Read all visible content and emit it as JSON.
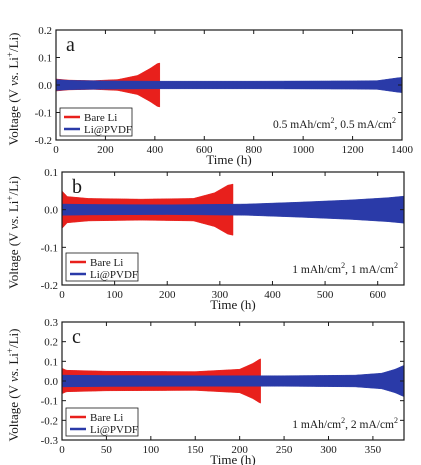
{
  "colors": {
    "bare_li": "#e8201c",
    "li_pvdf": "#2a3aa8",
    "frame": "#1a1a1a"
  },
  "chart_data": [
    {
      "type": "line",
      "panel_letter": "a",
      "xlabel": "Time (h)",
      "ylabel_parts": [
        "Voltage (V ",
        "vs.",
        " Li",
        "+",
        "/Li)"
      ],
      "condition_parts": [
        "0.5 mAh/cm",
        "2",
        ", 0.5 mA/cm",
        "2"
      ],
      "xlim": [
        0,
        1400
      ],
      "ylim": [
        -0.2,
        0.2
      ],
      "xticks": [
        0,
        200,
        400,
        600,
        800,
        1000,
        1200,
        1400
      ],
      "yticks": [
        -0.2,
        -0.1,
        0.0,
        0.1,
        0.2
      ],
      "xtick_labels": [
        "0",
        "200",
        "400",
        "600",
        "800",
        "1000",
        "1200",
        "1400"
      ],
      "ytick_labels": [
        "-0.2",
        "-0.1",
        "0.0",
        "0.1",
        "0.2"
      ],
      "legend_position": "bottom-left",
      "series": [
        {
          "name": "Bare Li",
          "color_key": "bare_li",
          "envelope": {
            "x": [
              0,
              50,
              150,
              250,
              330,
              380,
              410,
              420
            ],
            "upper": [
              0.022,
              0.018,
              0.016,
              0.02,
              0.035,
              0.06,
              0.078,
              0.08
            ]
          }
        },
        {
          "name": "Li@PVDF",
          "color_key": "li_pvdf",
          "envelope": {
            "x": [
              0,
              50,
              200,
              400,
              800,
              1200,
              1300,
              1380,
              1400
            ],
            "upper": [
              0.02,
              0.017,
              0.015,
              0.014,
              0.014,
              0.015,
              0.016,
              0.026,
              0.028
            ]
          }
        }
      ]
    },
    {
      "type": "line",
      "panel_letter": "b",
      "xlabel": "Time (h)",
      "ylabel_parts": [
        "Voltage (V ",
        "vs.",
        " Li",
        "+",
        "/Li)"
      ],
      "condition_parts": [
        "1 mAh/cm",
        "2",
        ", 1 mA/cm",
        "2"
      ],
      "xlim": [
        0,
        650
      ],
      "ylim": [
        -0.2,
        0.1
      ],
      "xticks": [
        0,
        100,
        200,
        300,
        400,
        500,
        600
      ],
      "yticks": [
        -0.2,
        -0.1,
        0.0,
        0.1
      ],
      "xtick_labels": [
        "0",
        "100",
        "200",
        "300",
        "400",
        "500",
        "600"
      ],
      "ytick_labels": [
        "-0.2",
        "-0.1",
        "0.0",
        "0.1"
      ],
      "legend_position": "bottom-left",
      "series": [
        {
          "name": "Bare Li",
          "color_key": "bare_li",
          "envelope": {
            "x": [
              0,
              10,
              50,
              150,
              250,
              290,
              315,
              325
            ],
            "upper": [
              0.05,
              0.035,
              0.03,
              0.028,
              0.03,
              0.045,
              0.065,
              0.068
            ]
          }
        },
        {
          "name": "Li@PVDF",
          "color_key": "li_pvdf",
          "envelope": {
            "x": [
              0,
              50,
              200,
              350,
              450,
              550,
              620,
              650
            ],
            "upper": [
              0.015,
              0.014,
              0.013,
              0.015,
              0.02,
              0.026,
              0.032,
              0.036
            ]
          }
        }
      ]
    },
    {
      "type": "line",
      "panel_letter": "c",
      "xlabel": "Time (h)",
      "ylabel_parts": [
        "Voltage (V ",
        "vs.",
        " Li",
        "+",
        "/Li)"
      ],
      "condition_parts": [
        "1 mAh/cm",
        "2",
        ", 2 mA/cm",
        "2"
      ],
      "xlim": [
        0,
        385
      ],
      "ylim": [
        -0.3,
        0.3
      ],
      "xticks": [
        0,
        50,
        100,
        150,
        200,
        250,
        300,
        350
      ],
      "yticks": [
        -0.3,
        -0.2,
        -0.1,
        0.0,
        0.1,
        0.2,
        0.3
      ],
      "xtick_labels": [
        "0",
        "50",
        "100",
        "150",
        "200",
        "250",
        "300",
        "350"
      ],
      "ytick_labels": [
        "-0.3",
        "-0.2",
        "-0.1",
        "0.0",
        "0.1",
        "0.2",
        "0.3"
      ],
      "legend_position": "bottom-left",
      "series": [
        {
          "name": "Bare Li",
          "color_key": "bare_li",
          "envelope": {
            "x": [
              0,
              5,
              50,
              150,
              200,
              215,
              222,
              225
            ],
            "upper": [
              0.065,
              0.055,
              0.05,
              0.048,
              0.06,
              0.09,
              0.11,
              0.115
            ]
          }
        },
        {
          "name": "Li@PVDF",
          "color_key": "li_pvdf",
          "envelope": {
            "x": [
              0,
              50,
              150,
              250,
              330,
              360,
              375,
              385
            ],
            "upper": [
              0.03,
              0.028,
              0.027,
              0.027,
              0.03,
              0.04,
              0.06,
              0.08
            ]
          }
        }
      ]
    }
  ]
}
